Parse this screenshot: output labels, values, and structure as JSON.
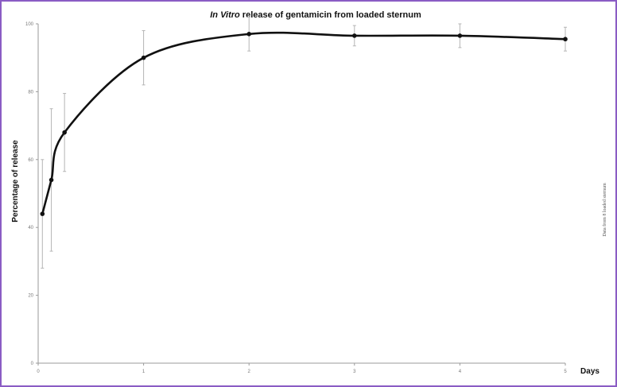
{
  "chart_data": {
    "type": "line",
    "title_italic": "In Vitro",
    "title_rest": " release of gentamicin from loaded sternum",
    "xlabel": "Days",
    "ylabel": "Percentage of release",
    "side_note": "Data from 8 loaded sternum",
    "xlim": [
      0,
      5
    ],
    "ylim": [
      0,
      100
    ],
    "x_ticks": [
      0,
      1,
      2,
      3,
      4,
      5
    ],
    "x_tick_labels": [
      "0",
      "1",
      "2",
      "3",
      "4",
      "5"
    ],
    "y_ticks": [
      0,
      20,
      40,
      60,
      80,
      100
    ],
    "y_tick_labels": [
      "0",
      "20",
      "40",
      "60",
      "80",
      "100"
    ],
    "grid": false,
    "series": [
      {
        "x": [
          0.04,
          0.125,
          0.25,
          1,
          2,
          3,
          4,
          5
        ],
        "y": [
          44,
          54,
          68,
          90,
          97,
          96.5,
          96.5,
          95.5
        ],
        "error": [
          16,
          21,
          11.5,
          8,
          5,
          3,
          3.5,
          3.5
        ]
      }
    ],
    "colors": {
      "line": "#111111",
      "error_bar": "#b5b5b5",
      "frame": "#8a5cc4"
    }
  }
}
